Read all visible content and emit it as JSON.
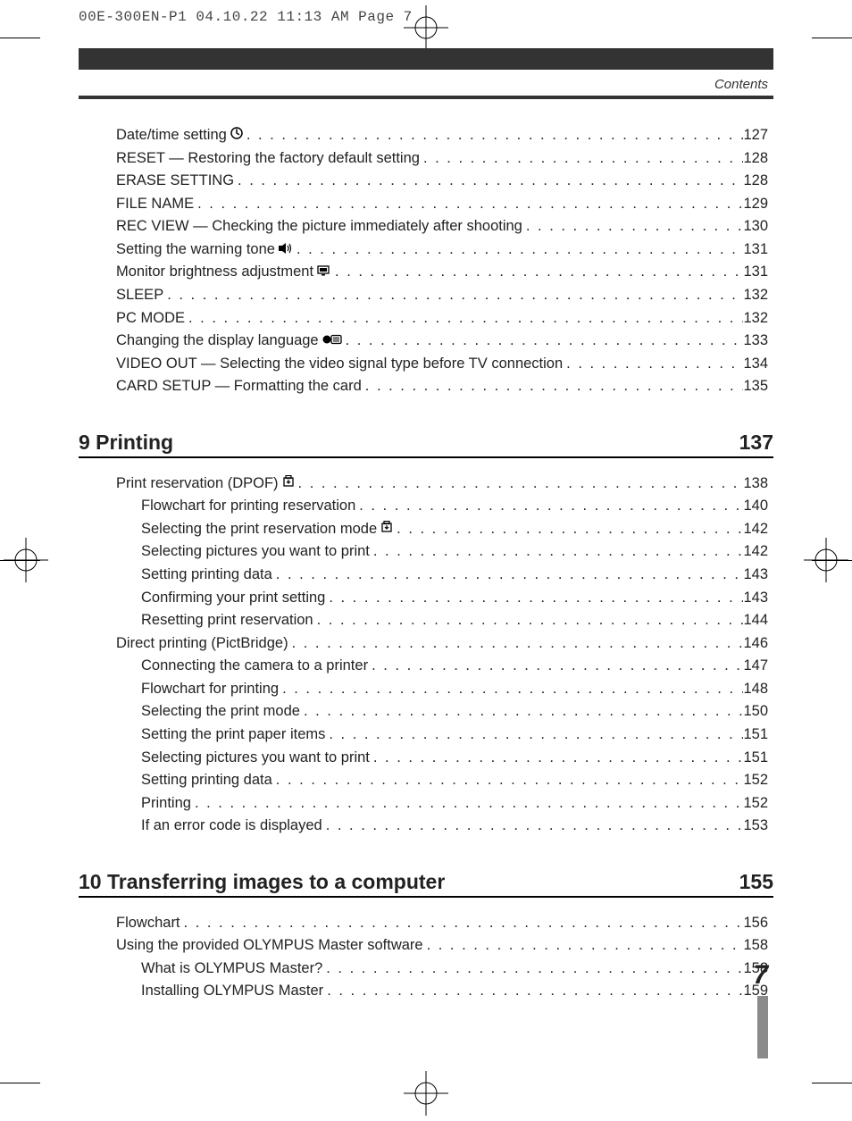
{
  "slug": "00E-300EN-P1  04.10.22 11:13 AM  Page 7",
  "header_label": "Contents",
  "page_number": "7",
  "continued_items": [
    {
      "label": "Date/time setting",
      "icon": "clock",
      "page": "127"
    },
    {
      "label": "RESET — Restoring the factory default setting",
      "page": "128"
    },
    {
      "label": "ERASE SETTING",
      "page": "128"
    },
    {
      "label": "FILE NAME",
      "page": "129"
    },
    {
      "label": "REC VIEW — Checking the picture immediately after shooting",
      "page": "130"
    },
    {
      "label": "Setting the warning tone",
      "icon": "sound",
      "page": "131"
    },
    {
      "label": "Monitor brightness adjustment",
      "icon": "monitor",
      "page": "131"
    },
    {
      "label": "SLEEP",
      "page": "132"
    },
    {
      "label": "PC MODE",
      "page": "132"
    },
    {
      "label": "Changing the display language",
      "icon": "lang",
      "page": "133"
    },
    {
      "label": "VIDEO OUT — Selecting the video signal type before TV connection",
      "page": "134"
    },
    {
      "label": "CARD SETUP — Formatting the card",
      "page": "135"
    }
  ],
  "sections": [
    {
      "number": "9",
      "title": "Printing",
      "page": "137",
      "items": [
        {
          "label": "Print reservation (DPOF)",
          "icon": "print",
          "page": "138"
        },
        {
          "label": "Flowchart for printing reservation",
          "page": "140",
          "sub": true
        },
        {
          "label": "Selecting the print reservation mode",
          "icon": "print",
          "page": "142",
          "sub": true
        },
        {
          "label": "Selecting pictures you want to print",
          "page": "142",
          "sub": true
        },
        {
          "label": "Setting printing data",
          "page": "143",
          "sub": true
        },
        {
          "label": "Confirming your print setting",
          "page": "143",
          "sub": true
        },
        {
          "label": "Resetting print reservation",
          "page": "144",
          "sub": true
        },
        {
          "label": "Direct printing (PictBridge)",
          "page": "146"
        },
        {
          "label": "Connecting the camera to a printer",
          "page": "147",
          "sub": true
        },
        {
          "label": "Flowchart for printing",
          "page": "148",
          "sub": true
        },
        {
          "label": "Selecting the print mode",
          "page": "150",
          "sub": true
        },
        {
          "label": "Setting the print paper items",
          "page": "151",
          "sub": true
        },
        {
          "label": "Selecting pictures you want to print",
          "page": "151",
          "sub": true
        },
        {
          "label": "Setting printing data",
          "page": "152",
          "sub": true
        },
        {
          "label": "Printing",
          "page": "152",
          "sub": true
        },
        {
          "label": "If an error code is displayed",
          "page": "153",
          "sub": true
        }
      ]
    },
    {
      "number": "10",
      "title": "Transferring images to a computer",
      "page": "155",
      "items": [
        {
          "label": "Flowchart",
          "page": "156"
        },
        {
          "label": "Using the provided OLYMPUS Master software",
          "page": "158"
        },
        {
          "label": "What is OLYMPUS Master?",
          "page": "158",
          "sub": true
        },
        {
          "label": "Installing OLYMPUS Master",
          "page": "159",
          "sub": true
        }
      ]
    }
  ],
  "icons": {
    "clock": "<svg width='14' height='14' viewBox='0 0 14 14'><circle cx='7' cy='7' r='6' fill='none' stroke='#000' stroke-width='1.5'/><path d='M7 3v4l2.5 1.5' stroke='#000' stroke-width='1.5' fill='none' stroke-linecap='round'/></svg>",
    "sound": "<svg width='16' height='12' viewBox='0 0 16 12'><rect x='0' y='3' width='4' height='6' fill='#000'/><path d='M4 3 L8 0 V12 L4 9 Z' fill='#000'/><path d='M10 3 Q12 6 10 9' stroke='#000' stroke-width='1.2' fill='none'/><path d='M12 1 Q15 6 12 11' stroke='#000' stroke-width='1.2' fill='none'/></svg>",
    "monitor": "<svg width='16' height='12' viewBox='0 0 16 12'><rect x='1' y='1' width='12' height='8' fill='none' stroke='#000' stroke-width='1.3'/><rect x='3' y='3' width='8' height='4' fill='#000'/><rect x='5' y='10' width='4' height='1.5' fill='#000'/></svg>",
    "lang": "<svg width='22' height='12' viewBox='0 0 22 12'><circle cx='5' cy='6' r='4.5' fill='#000'/><rect x='10' y='1.5' width='11' height='9' rx='1.5' fill='none' stroke='#000' stroke-width='1.3'/><line x1='12' y1='4' x2='19' y2='4' stroke='#000' stroke-width='1'/><line x1='12' y1='6' x2='19' y2='6' stroke='#000' stroke-width='1'/><line x1='12' y1='8' x2='19' y2='8' stroke='#000' stroke-width='1'/></svg>",
    "print": "<svg width='14' height='14' viewBox='0 0 14 14'><rect x='2' y='3' width='10' height='9' fill='none' stroke='#000' stroke-width='1.3'/><rect x='4' y='0.5' width='6' height='3' fill='none' stroke='#000' stroke-width='1.2'/><path d='M7 5v4M5 7l2 2 2-2' stroke='#000' stroke-width='1.2' fill='none'/></svg>"
  }
}
